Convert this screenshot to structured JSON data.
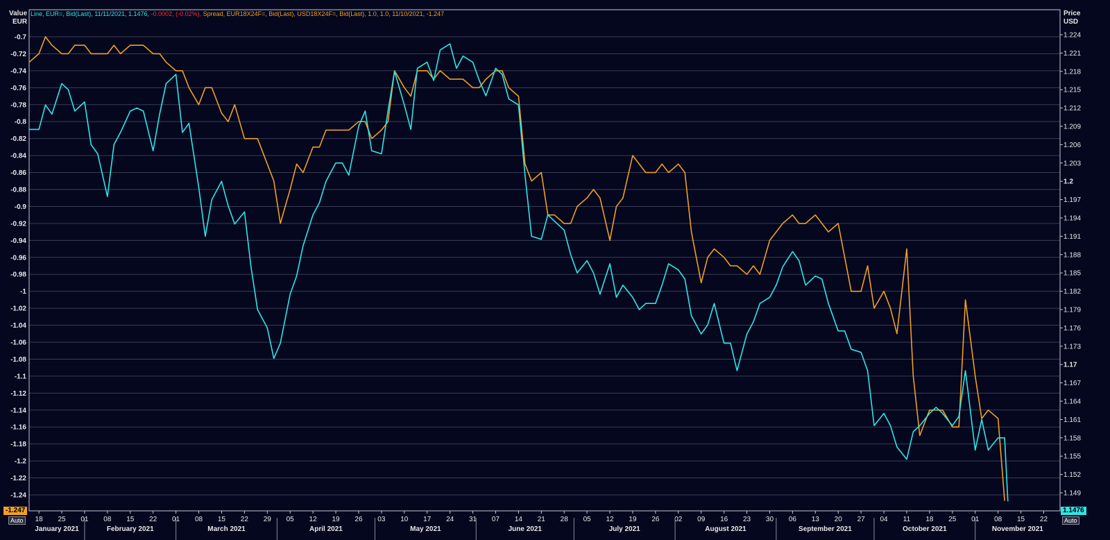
{
  "legend": {
    "line_label": "Line, EUR=, Bid(Last), 11/11/2021, 1.1476,",
    "line_change": "-0.0002, (-0.02%),",
    "spread_label": "Spread, EUR18X24F=, Bid(Last), USD18X24F=, Bid(Last),  1.0, 1.0,  11/10/2021, -1.247"
  },
  "left_axis": {
    "title_line1": "Value",
    "title_line2": "EUR",
    "auto_label": "Auto"
  },
  "right_axis": {
    "title_line1": "Price",
    "title_line2": "USD",
    "auto_label": "Auto"
  },
  "last_value_flags": {
    "left": "-1.247",
    "right": "1.1476"
  },
  "colors": {
    "background": "#05071f",
    "grid": "#3a3d55",
    "line_series": "#2ee6e6",
    "spread_series": "#f0a020",
    "change_red": "#ff3030",
    "axis_text": "#e8e8e8"
  },
  "chart_data": {
    "type": "line",
    "title": "",
    "x_tick_labels": [
      "18",
      "25",
      "01",
      "08",
      "15",
      "22",
      "01",
      "08",
      "15",
      "22",
      "29",
      "05",
      "12",
      "19",
      "26",
      "03",
      "10",
      "17",
      "24",
      "31",
      "07",
      "14",
      "21",
      "28",
      "05",
      "12",
      "19",
      "26",
      "02",
      "09",
      "16",
      "23",
      "30",
      "06",
      "13",
      "20",
      "27",
      "04",
      "11",
      "18",
      "25",
      "01",
      "08",
      "15",
      "22"
    ],
    "month_labels": [
      "January 2021",
      "February 2021",
      "March 2021",
      "April 2021",
      "May 2021",
      "June 2021",
      "July 2021",
      "August 2021",
      "September 2021",
      "October 2021",
      "November 2021"
    ],
    "left_axis": {
      "label": "Value EUR",
      "ylim": [
        -1.25,
        -0.68
      ],
      "ticks": [
        "-0.7",
        "-0.72",
        "-0.74",
        "-0.76",
        "-0.78",
        "-0.8",
        "-0.82",
        "-0.84",
        "-0.86",
        "-0.88",
        "-0.9",
        "-0.92",
        "-0.94",
        "-0.96",
        "-0.98",
        "-1",
        "-1.02",
        "-1.04",
        "-1.06",
        "-1.08",
        "-1.1",
        "-1.12",
        "-1.14",
        "-1.16",
        "-1.18",
        "-1.2",
        "-1.22",
        "-1.24"
      ]
    },
    "right_axis": {
      "label": "Price USD",
      "ylim": [
        1.1472,
        1.2258
      ],
      "ticks": [
        "1.224",
        "1.221",
        "1.218",
        "1.215",
        "1.212",
        "1.209",
        "1.206",
        "1.203",
        "1.2",
        "1.197",
        "1.194",
        "1.191",
        "1.188",
        "1.185",
        "1.182",
        "1.179",
        "1.176",
        "1.173",
        "1.17",
        "1.167",
        "1.164",
        "1.161",
        "1.158",
        "1.155",
        "1.152",
        "1.149"
      ]
    },
    "series": [
      {
        "name": "Line, EUR=",
        "axis": "right",
        "x": [
          "2021-01-15",
          "2021-01-18",
          "2021-01-20",
          "2021-01-22",
          "2021-01-25",
          "2021-01-27",
          "2021-01-29",
          "2021-02-01",
          "2021-02-03",
          "2021-02-05",
          "2021-02-08",
          "2021-02-10",
          "2021-02-12",
          "2021-02-15",
          "2021-02-17",
          "2021-02-19",
          "2021-02-22",
          "2021-02-24",
          "2021-02-26",
          "2021-03-01",
          "2021-03-03",
          "2021-03-05",
          "2021-03-08",
          "2021-03-10",
          "2021-03-12",
          "2021-03-15",
          "2021-03-17",
          "2021-03-19",
          "2021-03-22",
          "2021-03-24",
          "2021-03-26",
          "2021-03-29",
          "2021-03-31",
          "2021-04-02",
          "2021-04-05",
          "2021-04-07",
          "2021-04-09",
          "2021-04-12",
          "2021-04-14",
          "2021-04-16",
          "2021-04-19",
          "2021-04-21",
          "2021-04-23",
          "2021-04-26",
          "2021-04-28",
          "2021-04-30",
          "2021-05-03",
          "2021-05-05",
          "2021-05-07",
          "2021-05-10",
          "2021-05-12",
          "2021-05-14",
          "2021-05-17",
          "2021-05-19",
          "2021-05-21",
          "2021-05-24",
          "2021-05-26",
          "2021-05-28",
          "2021-05-31",
          "2021-06-02",
          "2021-06-04",
          "2021-06-07",
          "2021-06-09",
          "2021-06-11",
          "2021-06-14",
          "2021-06-16",
          "2021-06-18",
          "2021-06-21",
          "2021-06-23",
          "2021-06-25",
          "2021-06-28",
          "2021-06-30",
          "2021-07-02",
          "2021-07-05",
          "2021-07-07",
          "2021-07-09",
          "2021-07-12",
          "2021-07-14",
          "2021-07-16",
          "2021-07-19",
          "2021-07-21",
          "2021-07-23",
          "2021-07-26",
          "2021-07-28",
          "2021-07-30",
          "2021-08-02",
          "2021-08-04",
          "2021-08-06",
          "2021-08-09",
          "2021-08-11",
          "2021-08-13",
          "2021-08-16",
          "2021-08-18",
          "2021-08-20",
          "2021-08-23",
          "2021-08-25",
          "2021-08-27",
          "2021-08-30",
          "2021-09-01",
          "2021-09-03",
          "2021-09-06",
          "2021-09-08",
          "2021-09-10",
          "2021-09-13",
          "2021-09-15",
          "2021-09-17",
          "2021-09-20",
          "2021-09-22",
          "2021-09-24",
          "2021-09-27",
          "2021-09-29",
          "2021-10-01",
          "2021-10-04",
          "2021-10-06",
          "2021-10-08",
          "2021-10-11",
          "2021-10-13",
          "2021-10-15",
          "2021-10-18",
          "2021-10-20",
          "2021-10-22",
          "2021-10-25",
          "2021-10-27",
          "2021-10-29",
          "2021-11-01",
          "2021-11-03",
          "2021-11-05",
          "2021-11-08",
          "2021-11-10",
          "2021-11-11"
        ],
        "values": [
          1.2085,
          1.2085,
          1.2125,
          1.211,
          1.216,
          1.215,
          1.2115,
          1.213,
          1.206,
          1.2045,
          1.1975,
          1.206,
          1.208,
          1.2115,
          1.212,
          1.2115,
          1.205,
          1.211,
          1.216,
          1.2175,
          1.208,
          1.2095,
          1.199,
          1.191,
          1.197,
          1.2,
          1.196,
          1.193,
          1.195,
          1.186,
          1.179,
          1.176,
          1.171,
          1.1735,
          1.1815,
          1.1845,
          1.1895,
          1.1945,
          1.1965,
          1.2,
          1.203,
          1.203,
          1.201,
          1.209,
          1.2115,
          1.205,
          1.2045,
          1.2115,
          1.218,
          1.2125,
          1.2085,
          1.2185,
          1.2195,
          1.2165,
          1.2215,
          1.2225,
          1.2185,
          1.2205,
          1.2195,
          1.2165,
          1.214,
          1.2185,
          1.2175,
          1.2135,
          1.2125,
          1.201,
          1.191,
          1.1905,
          1.1945,
          1.1935,
          1.192,
          1.188,
          1.185,
          1.187,
          1.185,
          1.1815,
          1.1865,
          1.181,
          1.183,
          1.181,
          1.179,
          1.18,
          1.18,
          1.183,
          1.1865,
          1.1855,
          1.184,
          1.178,
          1.175,
          1.1765,
          1.18,
          1.1735,
          1.1735,
          1.169,
          1.175,
          1.177,
          1.18,
          1.181,
          1.183,
          1.186,
          1.1885,
          1.187,
          1.183,
          1.1845,
          1.184,
          1.18,
          1.1755,
          1.1755,
          1.1725,
          1.172,
          1.169,
          1.16,
          1.162,
          1.16,
          1.1565,
          1.1545,
          1.159,
          1.16,
          1.162,
          1.163,
          1.162,
          1.16,
          1.1615,
          1.169,
          1.156,
          1.161,
          1.156,
          1.158,
          1.158,
          1.1476
        ]
      },
      {
        "name": "Spread, EUR18X24F= / USD18X24F=",
        "axis": "left",
        "x": [
          "2021-01-15",
          "2021-01-18",
          "2021-01-20",
          "2021-01-22",
          "2021-01-25",
          "2021-01-27",
          "2021-01-29",
          "2021-02-01",
          "2021-02-03",
          "2021-02-05",
          "2021-02-08",
          "2021-02-10",
          "2021-02-12",
          "2021-02-15",
          "2021-02-17",
          "2021-02-19",
          "2021-02-22",
          "2021-02-24",
          "2021-02-26",
          "2021-03-01",
          "2021-03-03",
          "2021-03-05",
          "2021-03-08",
          "2021-03-10",
          "2021-03-12",
          "2021-03-15",
          "2021-03-17",
          "2021-03-19",
          "2021-03-22",
          "2021-03-24",
          "2021-03-26",
          "2021-03-29",
          "2021-03-31",
          "2021-04-02",
          "2021-04-05",
          "2021-04-07",
          "2021-04-09",
          "2021-04-12",
          "2021-04-14",
          "2021-04-16",
          "2021-04-19",
          "2021-04-21",
          "2021-04-23",
          "2021-04-26",
          "2021-04-28",
          "2021-04-30",
          "2021-05-03",
          "2021-05-05",
          "2021-05-07",
          "2021-05-10",
          "2021-05-12",
          "2021-05-14",
          "2021-05-17",
          "2021-05-19",
          "2021-05-21",
          "2021-05-24",
          "2021-05-26",
          "2021-05-28",
          "2021-05-31",
          "2021-06-02",
          "2021-06-04",
          "2021-06-07",
          "2021-06-09",
          "2021-06-11",
          "2021-06-14",
          "2021-06-16",
          "2021-06-18",
          "2021-06-21",
          "2021-06-23",
          "2021-06-25",
          "2021-06-28",
          "2021-06-30",
          "2021-07-02",
          "2021-07-05",
          "2021-07-07",
          "2021-07-09",
          "2021-07-12",
          "2021-07-14",
          "2021-07-16",
          "2021-07-19",
          "2021-07-21",
          "2021-07-23",
          "2021-07-26",
          "2021-07-28",
          "2021-07-30",
          "2021-08-02",
          "2021-08-04",
          "2021-08-06",
          "2021-08-09",
          "2021-08-11",
          "2021-08-13",
          "2021-08-16",
          "2021-08-18",
          "2021-08-20",
          "2021-08-23",
          "2021-08-25",
          "2021-08-27",
          "2021-08-30",
          "2021-09-01",
          "2021-09-03",
          "2021-09-06",
          "2021-09-08",
          "2021-09-10",
          "2021-09-13",
          "2021-09-15",
          "2021-09-17",
          "2021-09-20",
          "2021-09-22",
          "2021-09-24",
          "2021-09-27",
          "2021-09-29",
          "2021-10-01",
          "2021-10-04",
          "2021-10-06",
          "2021-10-08",
          "2021-10-11",
          "2021-10-13",
          "2021-10-15",
          "2021-10-18",
          "2021-10-20",
          "2021-10-22",
          "2021-10-25",
          "2021-10-27",
          "2021-10-29",
          "2021-11-01",
          "2021-11-03",
          "2021-11-05",
          "2021-11-08",
          "2021-11-10"
        ],
        "values": [
          -0.73,
          -0.72,
          -0.7,
          -0.71,
          -0.72,
          -0.72,
          -0.71,
          -0.71,
          -0.72,
          -0.72,
          -0.72,
          -0.71,
          -0.72,
          -0.71,
          -0.71,
          -0.71,
          -0.72,
          -0.72,
          -0.73,
          -0.74,
          -0.74,
          -0.76,
          -0.78,
          -0.76,
          -0.76,
          -0.79,
          -0.8,
          -0.78,
          -0.82,
          -0.82,
          -0.82,
          -0.85,
          -0.87,
          -0.92,
          -0.88,
          -0.85,
          -0.86,
          -0.83,
          -0.83,
          -0.81,
          -0.81,
          -0.81,
          -0.81,
          -0.8,
          -0.8,
          -0.82,
          -0.81,
          -0.8,
          -0.74,
          -0.76,
          -0.77,
          -0.74,
          -0.74,
          -0.75,
          -0.74,
          -0.75,
          -0.75,
          -0.75,
          -0.76,
          -0.76,
          -0.75,
          -0.74,
          -0.74,
          -0.76,
          -0.77,
          -0.85,
          -0.87,
          -0.86,
          -0.91,
          -0.91,
          -0.92,
          -0.92,
          -0.9,
          -0.89,
          -0.88,
          -0.89,
          -0.94,
          -0.9,
          -0.89,
          -0.84,
          -0.85,
          -0.86,
          -0.86,
          -0.85,
          -0.86,
          -0.85,
          -0.86,
          -0.93,
          -0.99,
          -0.96,
          -0.95,
          -0.96,
          -0.97,
          -0.97,
          -0.98,
          -0.97,
          -0.98,
          -0.94,
          -0.93,
          -0.92,
          -0.91,
          -0.92,
          -0.92,
          -0.91,
          -0.92,
          -0.93,
          -0.92,
          -0.96,
          -1.0,
          -1.0,
          -0.97,
          -1.02,
          -1.0,
          -1.02,
          -1.05,
          -0.95,
          -1.1,
          -1.17,
          -1.14,
          -1.14,
          -1.14,
          -1.16,
          -1.16,
          -1.01,
          -1.1,
          -1.15,
          -1.14,
          -1.15,
          -1.247
        ]
      }
    ]
  }
}
